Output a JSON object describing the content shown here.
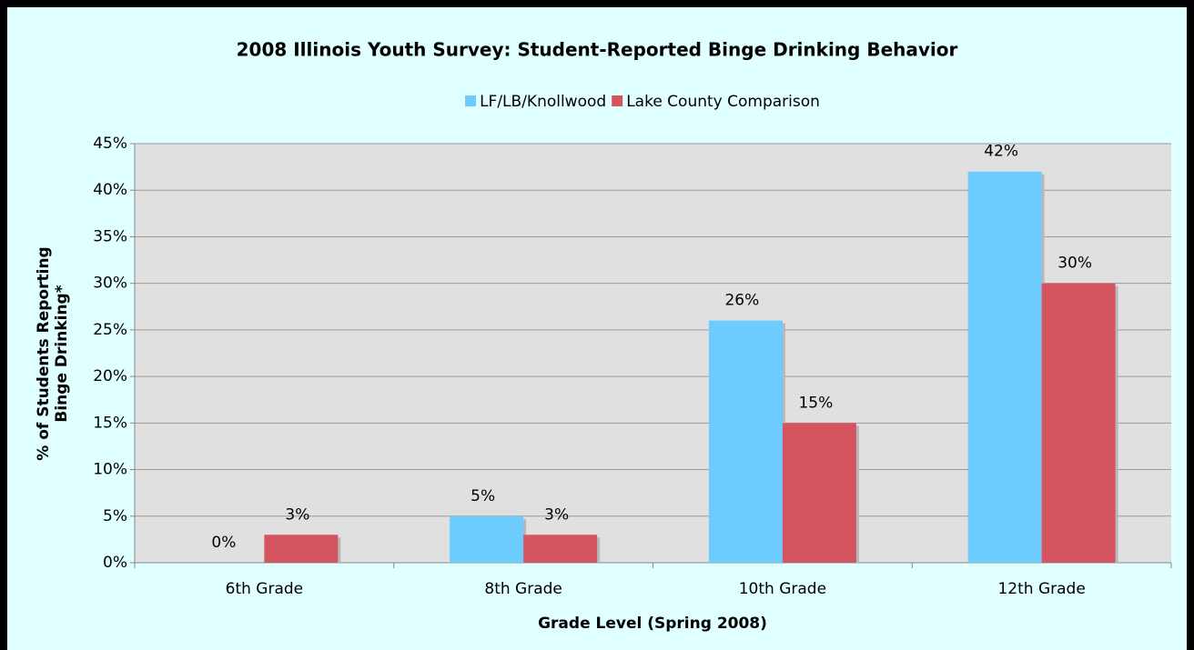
{
  "chart_data": {
    "type": "bar",
    "title": "2008 Illinois Youth Survey:  Student-Reported Binge Drinking Behavior",
    "xlabel": "Grade Level (Spring 2008)",
    "ylabel": [
      "% of Students Reporting",
      "Binge Drinking*"
    ],
    "categories": [
      "6th Grade",
      "8th Grade",
      "10th Grade",
      "12th Grade"
    ],
    "series": [
      {
        "name": "LF/LB/Knollwood",
        "color": "#6dcbfd",
        "values": [
          0,
          5,
          26,
          42
        ],
        "value_labels": [
          "0%",
          "5%",
          "26%",
          "42%"
        ]
      },
      {
        "name": "Lake County Comparison",
        "color": "#d45560",
        "values": [
          3,
          3,
          15,
          30
        ],
        "value_labels": [
          "3%",
          "3%",
          "15%",
          "30%"
        ]
      }
    ],
    "ylim": [
      0,
      45
    ],
    "yticks": [
      {
        "value": 0,
        "label": "0%"
      },
      {
        "value": 5,
        "label": "5%"
      },
      {
        "value": 10,
        "label": "10%"
      },
      {
        "value": 15,
        "label": "15%"
      },
      {
        "value": 20,
        "label": "20%"
      },
      {
        "value": 25,
        "label": "25%"
      },
      {
        "value": 30,
        "label": "30%"
      },
      {
        "value": 35,
        "label": "35%"
      },
      {
        "value": 40,
        "label": "40%"
      },
      {
        "value": 45,
        "label": "45%"
      }
    ],
    "grid": true,
    "legend": "top"
  }
}
